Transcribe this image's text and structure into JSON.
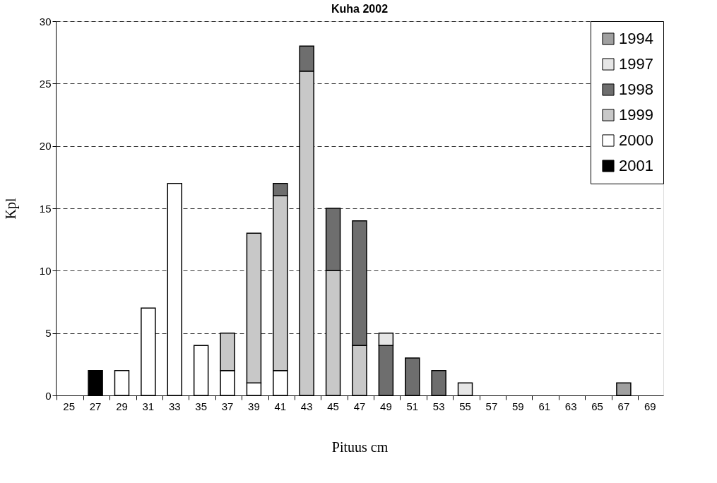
{
  "chart_data": {
    "type": "bar",
    "title": "Kuha 2002",
    "xlabel": "Pituus cm",
    "ylabel": "Kpl",
    "categories": [
      "25",
      "27",
      "29",
      "31",
      "33",
      "35",
      "37",
      "39",
      "41",
      "43",
      "45",
      "47",
      "49",
      "51",
      "53",
      "55",
      "57",
      "59",
      "61",
      "63",
      "65",
      "67",
      "69"
    ],
    "stacked": true,
    "ylim": [
      0,
      30
    ],
    "yticks": [
      0,
      5,
      10,
      15,
      20,
      25,
      30
    ],
    "grid": "y",
    "legend": "top right",
    "series": [
      {
        "name": "2001",
        "color": "#000000",
        "values": [
          null,
          2,
          null,
          null,
          null,
          null,
          null,
          null,
          null,
          null,
          null,
          null,
          null,
          null,
          null,
          null,
          null,
          null,
          null,
          null,
          null,
          null,
          null
        ]
      },
      {
        "name": "2000",
        "color": "#ffffff",
        "values": [
          null,
          null,
          2,
          7,
          17,
          4,
          2,
          1,
          2,
          null,
          null,
          null,
          null,
          null,
          null,
          null,
          null,
          null,
          null,
          null,
          null,
          null,
          null
        ]
      },
      {
        "name": "1999",
        "color": "#c8c8c8",
        "values": [
          null,
          null,
          null,
          null,
          null,
          null,
          3,
          12,
          14,
          26,
          10,
          4,
          null,
          null,
          null,
          null,
          null,
          null,
          null,
          null,
          null,
          null,
          null
        ]
      },
      {
        "name": "1998",
        "color": "#6e6e6e",
        "values": [
          null,
          null,
          null,
          null,
          null,
          null,
          null,
          null,
          1,
          2,
          5,
          10,
          4,
          3,
          2,
          null,
          null,
          null,
          null,
          null,
          null,
          null,
          null
        ]
      },
      {
        "name": "1997",
        "color": "#e6e6e6",
        "values": [
          null,
          null,
          null,
          null,
          null,
          null,
          null,
          null,
          null,
          null,
          null,
          null,
          1,
          null,
          null,
          1,
          null,
          null,
          null,
          null,
          null,
          null,
          null
        ]
      },
      {
        "name": "1994",
        "color": "#a0a0a0",
        "values": [
          null,
          null,
          null,
          null,
          null,
          null,
          null,
          null,
          null,
          null,
          null,
          null,
          null,
          null,
          null,
          null,
          null,
          null,
          null,
          null,
          null,
          1,
          null
        ]
      }
    ]
  }
}
